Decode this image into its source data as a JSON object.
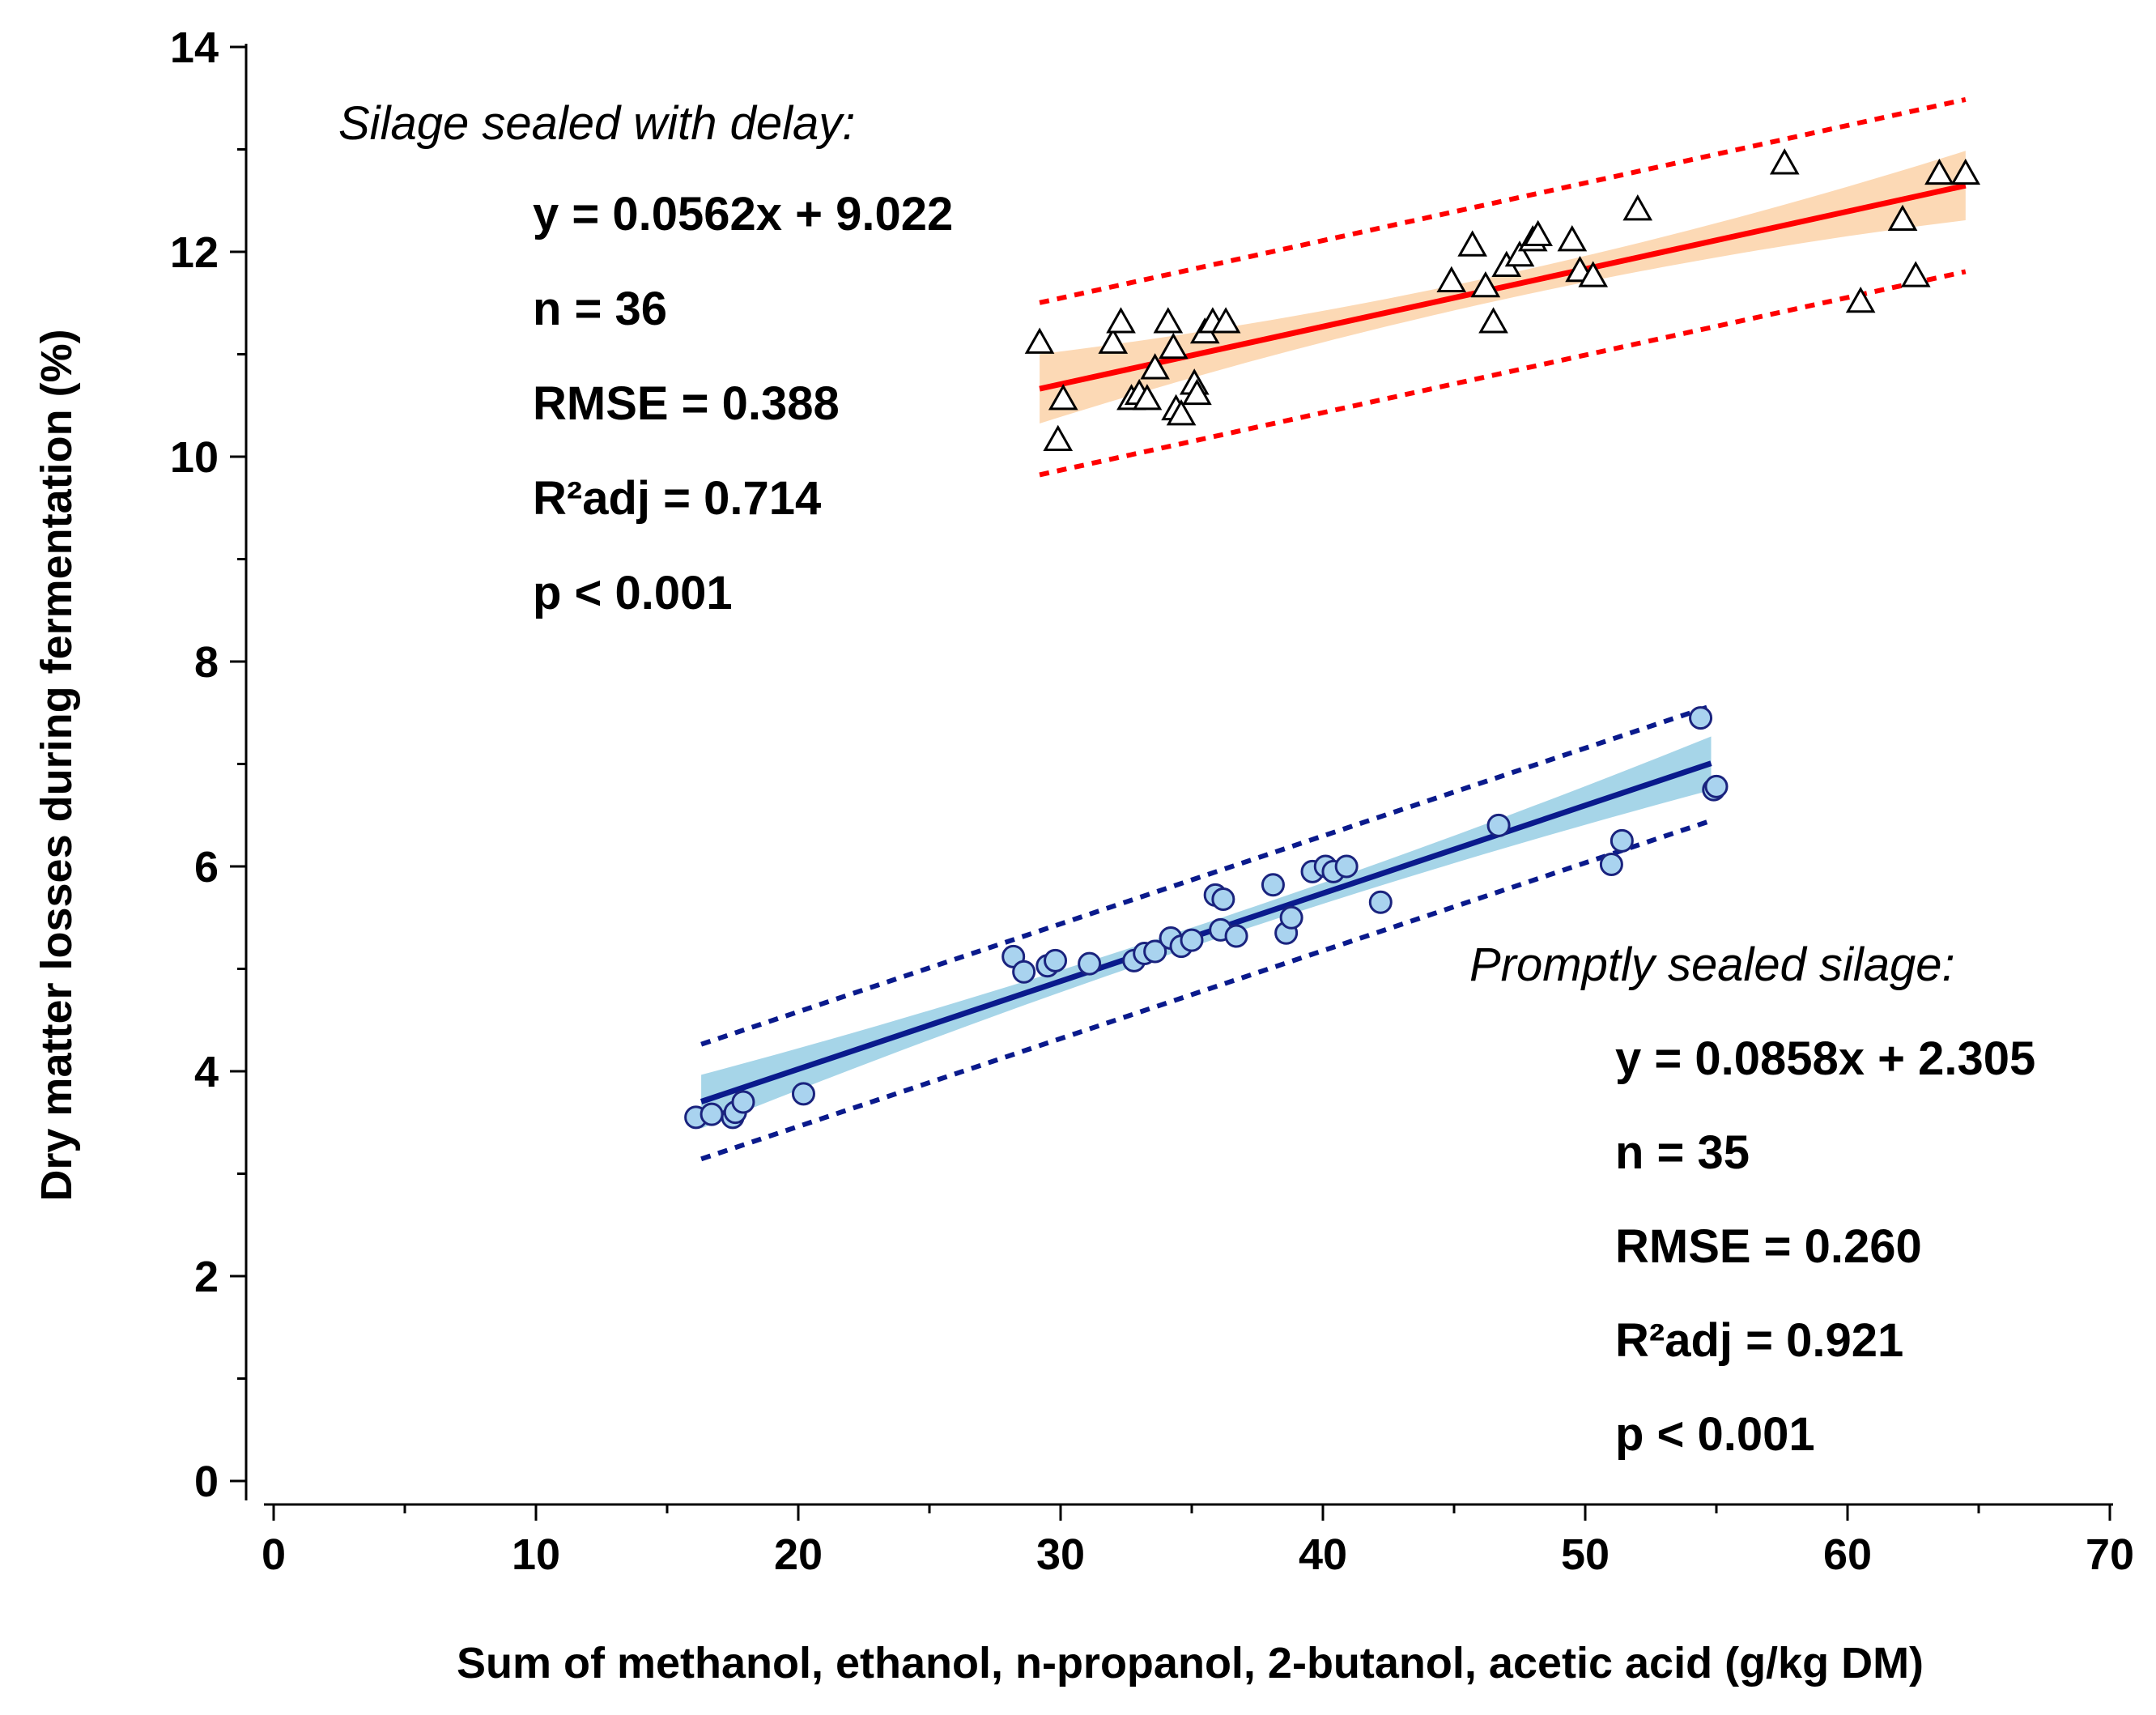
{
  "chart_data": {
    "type": "scatter",
    "xlabel": "Sum of methanol, ethanol, n-propanol, 2-butanol, acetic acid (g/kg DM)",
    "ylabel": "Dry matter losses during fermentation (%)",
    "xlim": [
      0,
      70
    ],
    "ylim": [
      0,
      14
    ],
    "x_ticks": [
      0,
      10,
      20,
      30,
      40,
      50,
      60,
      70
    ],
    "y_ticks": [
      0,
      2,
      4,
      6,
      8,
      10,
      12,
      14
    ],
    "grid": false,
    "colors": {
      "delayed_line": "#ff0000",
      "delayed_band": "#fcd9b5",
      "delayed_marker_stroke": "#000000",
      "prompt_line": "#0a1a8c",
      "prompt_band": "#a6d5e8",
      "prompt_marker_fill": "#a9d3ef",
      "prompt_marker_stroke": "#1a237e"
    },
    "series": [
      {
        "name": "Silage sealed with delay",
        "marker": "triangle",
        "fit": {
          "slope": 0.0562,
          "intercept": 9.022,
          "x_range": [
            29.2,
            64.5
          ],
          "ci_half_width": 0.22,
          "pi_half_width": 0.84
        },
        "annotation": {
          "title": "Silage sealed with delay:",
          "lines": [
            "y = 0.0562x + 9.022",
            "n = 36",
            "RMSE = 0.388",
            "R²adj = 0.714",
            "p < 0.001"
          ]
        },
        "points": [
          [
            29.2,
            11.1
          ],
          [
            29.9,
            10.15
          ],
          [
            30.1,
            10.55
          ],
          [
            32.0,
            11.1
          ],
          [
            32.3,
            11.3
          ],
          [
            32.7,
            10.55
          ],
          [
            33.0,
            10.6
          ],
          [
            33.3,
            10.55
          ],
          [
            33.6,
            10.85
          ],
          [
            34.1,
            11.3
          ],
          [
            34.3,
            11.05
          ],
          [
            34.4,
            10.45
          ],
          [
            34.6,
            10.4
          ],
          [
            35.1,
            10.7
          ],
          [
            35.2,
            10.6
          ],
          [
            35.5,
            11.2
          ],
          [
            35.8,
            11.3
          ],
          [
            36.3,
            11.3
          ],
          [
            44.9,
            11.7
          ],
          [
            45.7,
            12.05
          ],
          [
            46.2,
            11.65
          ],
          [
            46.5,
            11.3
          ],
          [
            47.0,
            11.85
          ],
          [
            47.5,
            11.95
          ],
          [
            48.0,
            12.1
          ],
          [
            48.2,
            12.15
          ],
          [
            49.5,
            12.1
          ],
          [
            49.8,
            11.8
          ],
          [
            50.3,
            11.75
          ],
          [
            52.0,
            12.4
          ],
          [
            57.6,
            12.85
          ],
          [
            60.5,
            11.5
          ],
          [
            62.1,
            12.3
          ],
          [
            62.6,
            11.75
          ],
          [
            63.5,
            12.75
          ],
          [
            64.5,
            12.75
          ]
        ]
      },
      {
        "name": "Promptly sealed silage",
        "marker": "circle",
        "fit": {
          "slope": 0.0858,
          "intercept": 2.305,
          "x_range": [
            16.3,
            54.8
          ],
          "ci_half_width": 0.17,
          "pi_half_width": 0.56
        },
        "annotation": {
          "title": "Promptly sealed silage:",
          "lines": [
            "y = 0.0858x + 2.305",
            "n = 35",
            "RMSE = 0.260",
            "R²adj = 0.921",
            "p < 0.001"
          ]
        },
        "points": [
          [
            16.1,
            3.55
          ],
          [
            16.7,
            3.58
          ],
          [
            17.5,
            3.55
          ],
          [
            17.6,
            3.6
          ],
          [
            17.9,
            3.7
          ],
          [
            20.2,
            3.78
          ],
          [
            28.2,
            5.12
          ],
          [
            28.6,
            4.97
          ],
          [
            29.5,
            5.03
          ],
          [
            29.8,
            5.08
          ],
          [
            31.1,
            5.05
          ],
          [
            32.8,
            5.08
          ],
          [
            33.2,
            5.15
          ],
          [
            33.6,
            5.17
          ],
          [
            34.2,
            5.3
          ],
          [
            34.6,
            5.22
          ],
          [
            35.0,
            5.28
          ],
          [
            35.9,
            5.72
          ],
          [
            36.1,
            5.38
          ],
          [
            36.2,
            5.68
          ],
          [
            36.7,
            5.32
          ],
          [
            38.1,
            5.82
          ],
          [
            38.6,
            5.35
          ],
          [
            38.8,
            5.5
          ],
          [
            39.6,
            5.95
          ],
          [
            40.1,
            6.0
          ],
          [
            40.4,
            5.95
          ],
          [
            40.9,
            6.0
          ],
          [
            42.2,
            5.65
          ],
          [
            46.7,
            6.4
          ],
          [
            51.0,
            6.02
          ],
          [
            51.4,
            6.25
          ],
          [
            54.4,
            7.45
          ],
          [
            54.9,
            6.75
          ],
          [
            55.0,
            6.78
          ]
        ]
      }
    ]
  }
}
